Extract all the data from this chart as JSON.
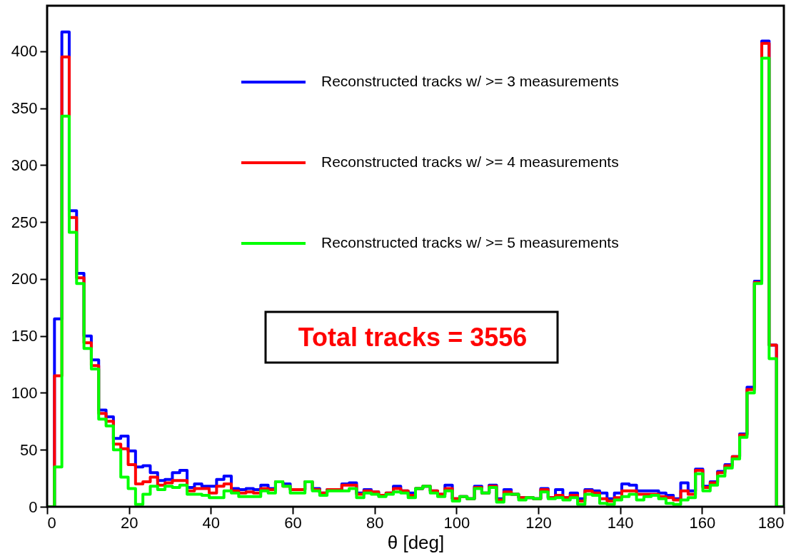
{
  "chart_data": {
    "type": "histogram",
    "xlabel": "θ [deg]",
    "bins": [
      0,
      1.8,
      3.6,
      5.4,
      7.2,
      9,
      10.8,
      12.6,
      14.4,
      16.2,
      18,
      19.8,
      21.6,
      23.4,
      25.2,
      27,
      28.8,
      30.6,
      32.4,
      34.2,
      36,
      37.8,
      39.6,
      41.4,
      43.2,
      45,
      46.8,
      48.6,
      50.4,
      52.2,
      54,
      55.8,
      57.6,
      59.4,
      61.2,
      63,
      64.8,
      66.6,
      68.4,
      70.2,
      72,
      73.8,
      75.6,
      77.4,
      79.2,
      81,
      82.8,
      84.6,
      86.4,
      88.2,
      90,
      91.8,
      93.6,
      95.4,
      97.2,
      99,
      100.8,
      102.6,
      104.4,
      106.2,
      108,
      109.8,
      111.6,
      113.4,
      115.2,
      117,
      118.8,
      120.6,
      122.4,
      124.2,
      126,
      127.8,
      129.6,
      131.4,
      133.2,
      135,
      136.8,
      138.6,
      140.4,
      142.2,
      144,
      145.8,
      147.6,
      149.4,
      151.2,
      153,
      154.8,
      156.6,
      158.4,
      160.2,
      162,
      163.8,
      165.6,
      167.4,
      169.2,
      171,
      172.8,
      174.6,
      176.4,
      178.2,
      180
    ],
    "series": [
      {
        "name": "Reconstructed tracks w/ >= 3 measurements",
        "color": "#0000ff",
        "values": [
          0,
          165,
          417,
          260,
          205,
          150,
          129,
          85,
          79,
          60,
          62,
          49,
          35,
          36,
          30,
          23,
          24,
          30,
          32,
          17,
          20,
          18,
          18,
          24,
          27,
          16,
          15,
          16,
          15,
          19,
          16,
          22,
          20,
          15,
          15,
          22,
          16,
          12,
          15,
          15,
          20,
          21,
          12,
          15,
          13,
          10,
          12,
          18,
          14,
          12,
          16,
          18,
          14,
          11,
          19,
          7,
          9,
          7,
          18,
          12,
          19,
          7,
          15,
          11,
          8,
          8,
          7,
          16,
          8,
          15,
          8,
          12,
          7,
          15,
          14,
          12,
          7,
          12,
          20,
          19,
          14,
          14,
          14,
          12,
          10,
          7,
          21,
          14,
          33,
          18,
          22,
          31,
          37,
          44,
          64,
          105,
          198,
          409,
          142,
          0
        ]
      },
      {
        "name": "Reconstructed tracks w/ >= 4 measurements",
        "color": "#ff0000",
        "values": [
          0,
          115,
          395,
          254,
          201,
          144,
          124,
          82,
          75,
          55,
          51,
          37,
          20,
          22,
          26,
          19,
          21,
          23,
          23,
          14,
          16,
          16,
          12,
          18,
          20,
          14,
          12,
          13,
          12,
          16,
          15,
          22,
          18,
          15,
          15,
          22,
          15,
          12,
          15,
          15,
          19,
          19,
          11,
          14,
          13,
          10,
          12,
          16,
          14,
          10,
          16,
          18,
          14,
          11,
          16,
          7,
          9,
          7,
          17,
          12,
          18,
          6,
          13,
          11,
          8,
          8,
          7,
          15,
          8,
          10,
          8,
          10,
          5,
          14,
          12,
          7,
          5,
          8,
          14,
          14,
          11,
          11,
          11,
          9,
          8,
          6,
          14,
          11,
          32,
          17,
          21,
          30,
          36,
          44,
          63,
          103,
          197,
          407,
          142,
          0
        ]
      },
      {
        "name": "Reconstructed tracks w/ >= 5 measurements",
        "color": "#00ff00",
        "values": [
          0,
          35,
          343,
          241,
          196,
          139,
          121,
          77,
          71,
          50,
          26,
          16,
          2,
          11,
          18,
          15,
          18,
          17,
          19,
          11,
          11,
          10,
          8,
          8,
          14,
          12,
          9,
          9,
          9,
          14,
          12,
          22,
          18,
          12,
          12,
          22,
          14,
          10,
          14,
          14,
          14,
          16,
          8,
          12,
          11,
          9,
          11,
          13,
          12,
          8,
          16,
          18,
          12,
          9,
          14,
          5,
          9,
          7,
          16,
          12,
          17,
          4,
          11,
          11,
          6,
          8,
          7,
          13,
          7,
          8,
          6,
          8,
          2,
          11,
          10,
          3,
          2,
          6,
          9,
          11,
          6,
          9,
          10,
          7,
          3,
          2,
          6,
          8,
          29,
          14,
          19,
          27,
          34,
          42,
          61,
          100,
          196,
          394,
          130,
          0
        ]
      }
    ],
    "xlim": [
      0,
      180
    ],
    "xticks": [
      0,
      20,
      40,
      60,
      80,
      100,
      120,
      140,
      160,
      180
    ],
    "ylim": [
      0,
      440
    ],
    "yticks": [
      0,
      50,
      100,
      150,
      200,
      250,
      300,
      350,
      400
    ],
    "grid": false,
    "legend": "top right",
    "line_style": "solid",
    "annotations": [
      "Total tracks = 3556"
    ]
  }
}
